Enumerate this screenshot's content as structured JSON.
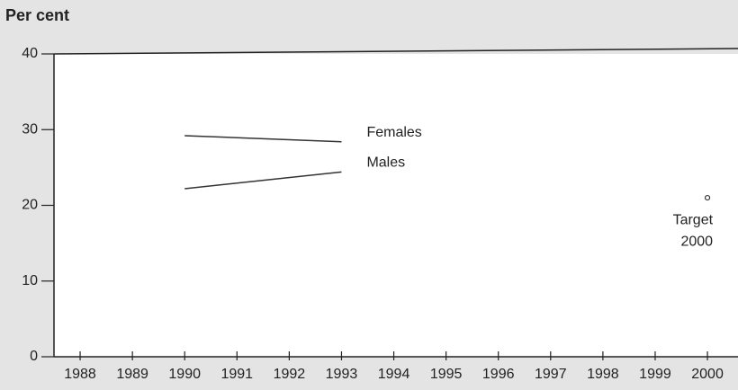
{
  "chart_data": {
    "type": "line",
    "y_label": "Per cent",
    "series": [
      {
        "name": "Females",
        "color": "#333333",
        "x": [
          1990,
          1993
        ],
        "values": [
          29.2,
          28.4
        ]
      },
      {
        "name": "Males",
        "color": "#333333",
        "x": [
          1990,
          1993
        ],
        "values": [
          22.2,
          24.4
        ]
      }
    ],
    "target": {
      "x": 2000,
      "value": 21,
      "label": [
        "Target",
        "2000"
      ]
    },
    "xlim": [
      1987.5,
      2000.55
    ],
    "ylim": [
      0,
      40
    ],
    "xticks": [
      1988,
      1989,
      1990,
      1991,
      1992,
      1993,
      1994,
      1995,
      1996,
      1997,
      1998,
      1999,
      2000
    ],
    "yticks": [
      0,
      10,
      20,
      30,
      40
    ]
  }
}
